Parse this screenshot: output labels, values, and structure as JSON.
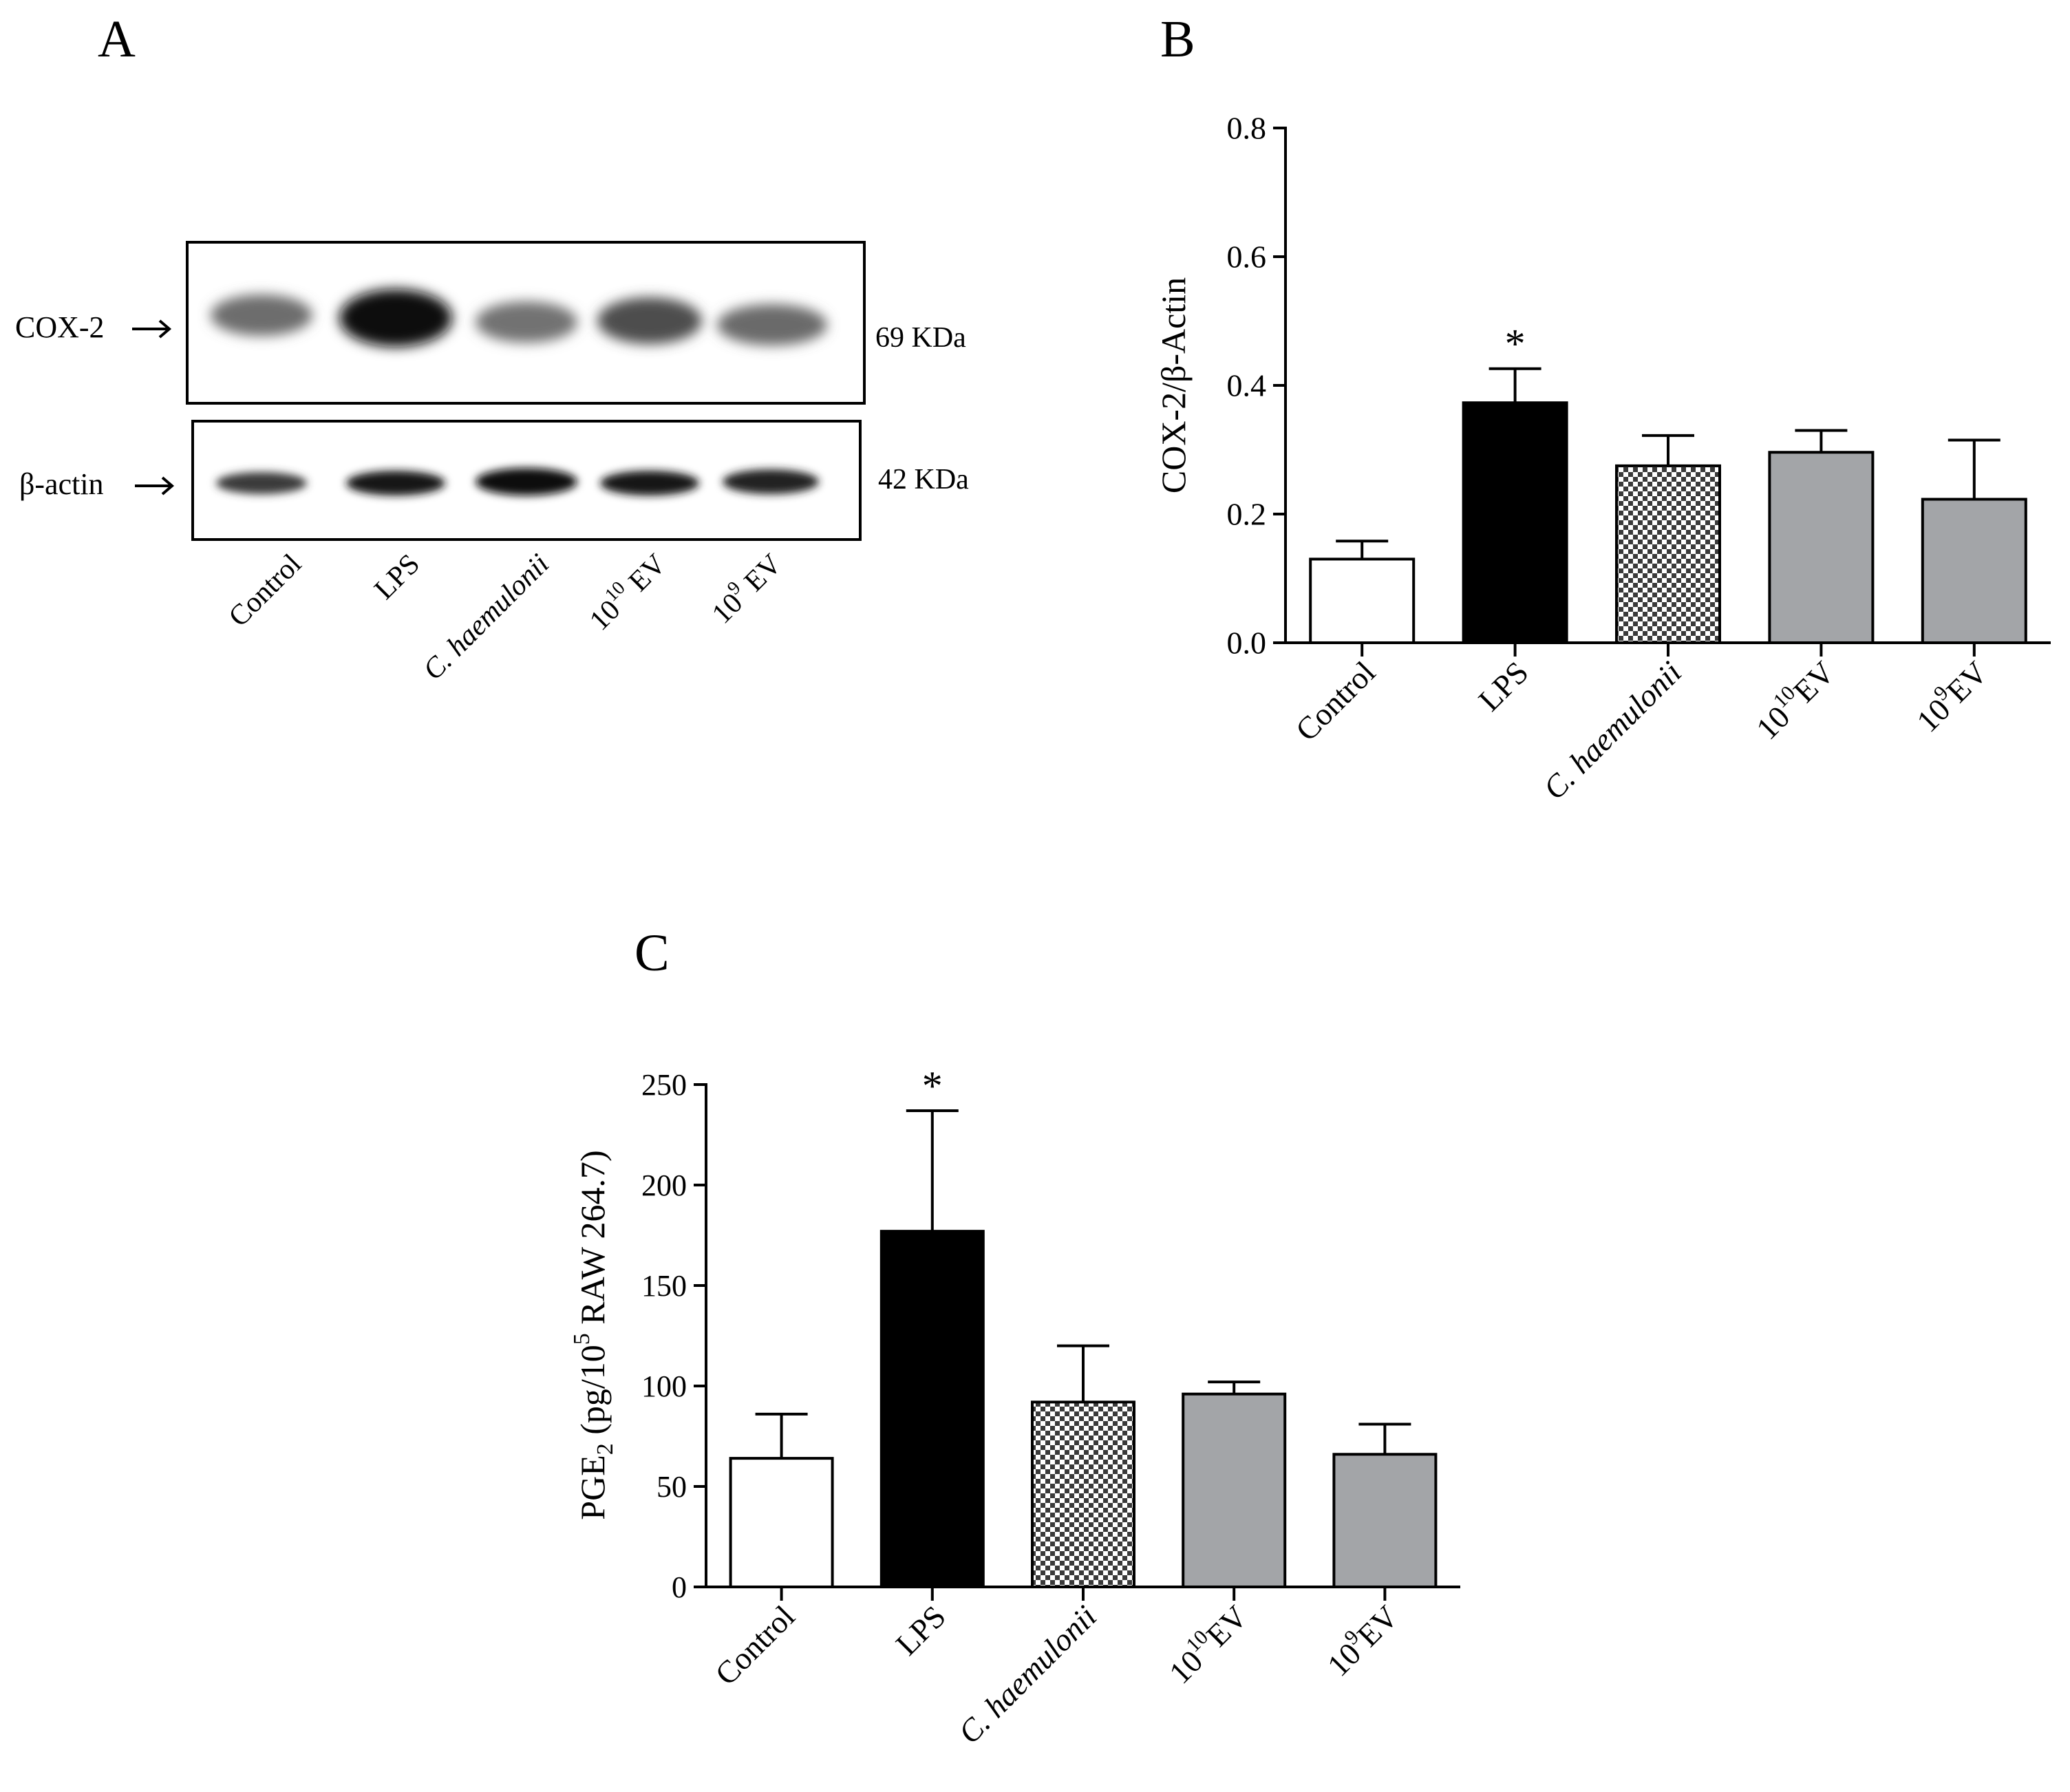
{
  "panels": {
    "A": {
      "label": "A",
      "blot_rows": [
        {
          "target": "COX-2",
          "marker": "69 KDa"
        },
        {
          "target": "β-actin",
          "marker": "42 KDa"
        }
      ],
      "lanes": [
        {
          "text": "Control",
          "sup": "",
          "tail": "",
          "italic": false
        },
        {
          "text": "LPS",
          "sup": "",
          "tail": "",
          "italic": false
        },
        {
          "text": "C. haemulonii",
          "sup": "",
          "tail": "",
          "italic": true
        },
        {
          "text": "10",
          "sup": "10",
          "tail": " EV",
          "italic": false
        },
        {
          "text": "10",
          "sup": "9",
          "tail": " EV",
          "italic": false
        }
      ]
    },
    "B": {
      "label": "B"
    },
    "C": {
      "label": "C"
    }
  },
  "colors": {
    "control": "#ffffff",
    "lps": "#000000",
    "haemulonii_check_light": "#ffffff",
    "haemulonii_check_dark": "#3a3a3a",
    "ev": "#a3a5a8"
  },
  "chart_data": [
    {
      "panel": "B",
      "type": "bar",
      "categories": [
        "Control",
        "LPS",
        "C. haemulonii",
        "1010EV",
        "109EV"
      ],
      "category_labels": [
        {
          "text": "Control",
          "sup": "",
          "tail": "",
          "italic": false
        },
        {
          "text": "LPS",
          "sup": "",
          "tail": "",
          "italic": false
        },
        {
          "text": "C. haemulonii",
          "sup": "",
          "tail": "",
          "italic": true
        },
        {
          "text": "10",
          "sup": "10",
          "tail": "EV",
          "italic": false
        },
        {
          "text": "10",
          "sup": "9",
          "tail": "EV",
          "italic": false
        }
      ],
      "values": [
        0.13,
        0.373,
        0.275,
        0.296,
        0.223
      ],
      "errors": [
        0.028,
        0.053,
        0.047,
        0.034,
        0.092
      ],
      "fills": [
        "control",
        "lps",
        "checker",
        "ev",
        "ev"
      ],
      "significance": [
        "",
        "*",
        "",
        "",
        ""
      ],
      "ylabel": "COX-2/β-Actin",
      "ylim": [
        0,
        0.8
      ],
      "yticks": [
        0.0,
        0.2,
        0.4,
        0.6,
        0.8
      ],
      "ytick_labels": [
        "0.0",
        "0.2",
        "0.4",
        "0.6",
        "0.8"
      ],
      "grid": false,
      "legend": "none"
    },
    {
      "panel": "C",
      "type": "bar",
      "categories": [
        "Control",
        "LPS",
        "C. haemulonii",
        "1010EV",
        "109EV"
      ],
      "category_labels": [
        {
          "text": "Control",
          "sup": "",
          "tail": "",
          "italic": false
        },
        {
          "text": "LPS",
          "sup": "",
          "tail": "",
          "italic": false
        },
        {
          "text": "C. haemulonii",
          "sup": "",
          "tail": "",
          "italic": true
        },
        {
          "text": "10",
          "sup": "10",
          "tail": "EV",
          "italic": false
        },
        {
          "text": "10",
          "sup": "9",
          "tail": "EV",
          "italic": false
        }
      ],
      "values": [
        64,
        177,
        92,
        96,
        66
      ],
      "errors": [
        22,
        60,
        28,
        6,
        15
      ],
      "fills": [
        "control",
        "lps",
        "checker",
        "ev",
        "ev"
      ],
      "significance": [
        "",
        "*",
        "",
        "",
        ""
      ],
      "ylabel_parts": {
        "main": "PGE",
        "sub": "2",
        "mid": " (pg/10",
        "sup": "5",
        "tail": " RAW 264.7)"
      },
      "ylim": [
        0,
        250
      ],
      "yticks": [
        0,
        50,
        100,
        150,
        200,
        250
      ],
      "ytick_labels": [
        "0",
        "50",
        "100",
        "150",
        "200",
        "250"
      ],
      "grid": false,
      "legend": "none"
    }
  ]
}
